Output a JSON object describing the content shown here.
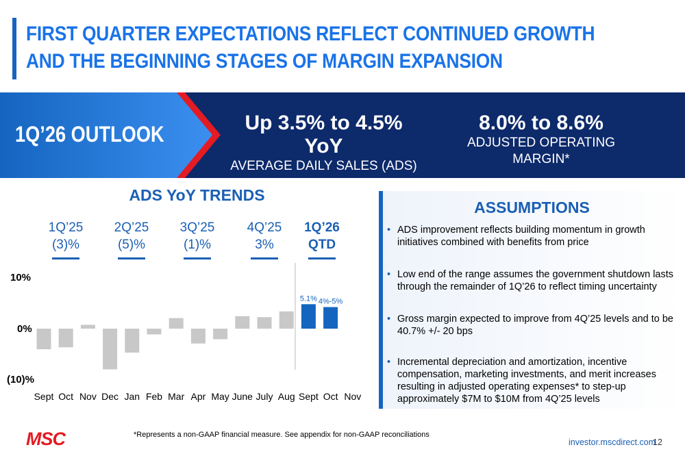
{
  "header": {
    "title": "FIRST QUARTER EXPECTATIONS REFLECT CONTINUED GROWTH AND THE BEGINNING STAGES OF MARGIN EXPANSION"
  },
  "banner": {
    "label": "1Q’26 OUTLOOK",
    "stat1": {
      "value": "Up 3.5% to 4.5% YoY",
      "caption": "AVERAGE DAILY SALES (ADS)"
    },
    "stat2": {
      "value": "8.0% to 8.6%",
      "caption": "ADJUSTED OPERATING MARGIN*"
    }
  },
  "trends": {
    "title": "ADS YoY TRENDS",
    "quarters": [
      {
        "name": "1Q’25",
        "value": "(3)%"
      },
      {
        "name": "2Q’25",
        "value": "(5)%"
      },
      {
        "name": "3Q’25",
        "value": "(1)%"
      },
      {
        "name": "4Q’25",
        "value": "3%"
      },
      {
        "name": "1Q’26",
        "value": "QTD"
      }
    ]
  },
  "chart_data": {
    "type": "bar",
    "title": "ADS YoY TRENDS",
    "categories": [
      "Sept",
      "Oct",
      "Nov",
      "Dec",
      "Jan",
      "Feb",
      "Mar",
      "Apr",
      "May",
      "June",
      "July",
      "Aug",
      "Sept",
      "Oct",
      "Nov"
    ],
    "values": [
      -4.3,
      -3.9,
      0.8,
      -8.5,
      -5.0,
      -1.2,
      2.2,
      -3.1,
      -2.2,
      2.6,
      2.4,
      3.6,
      5.1,
      4.5,
      null
    ],
    "highlight": [
      false,
      false,
      false,
      false,
      false,
      false,
      false,
      false,
      false,
      false,
      false,
      false,
      true,
      true,
      false
    ],
    "data_labels": [
      "",
      "",
      "",
      "",
      "",
      "",
      "",
      "",
      "",
      "",
      "",
      "",
      "5.1%",
      "4%-5%",
      ""
    ],
    "y_ticks": [
      "10%",
      "0%",
      "(10)%"
    ],
    "ylim": [
      -10,
      10
    ],
    "colors": {
      "base": "#c8c8c8",
      "highlight": "#1565c0"
    }
  },
  "assumptions": {
    "title": "ASSUMPTIONS",
    "bullet_char": "•",
    "items": [
      "ADS improvement reflects building momentum in growth initiatives combined with benefits from price",
      "Low end of the range assumes the government shutdown lasts through the remainder of 1Q’26 to reflect timing uncertainty",
      "Gross margin expected to improve from 4Q’25 levels and to be 40.7% +/- 20 bps",
      "Incremental depreciation and amortization, incentive compensation, marketing investments, and merit increases resulting in adjusted operating expenses* to step-up approximately $7M to $10M from 4Q’25 levels"
    ]
  },
  "footer": {
    "logo": "MSC",
    "note": "*Represents a non-GAAP financial measure. See appendix for non-GAAP reconciliations",
    "site": "investor.mscdirect.com",
    "page": "12"
  },
  "colors": {
    "brand_blue": "#1565c0",
    "navy": "#0d2a6b",
    "accent_red": "#e31b23"
  }
}
